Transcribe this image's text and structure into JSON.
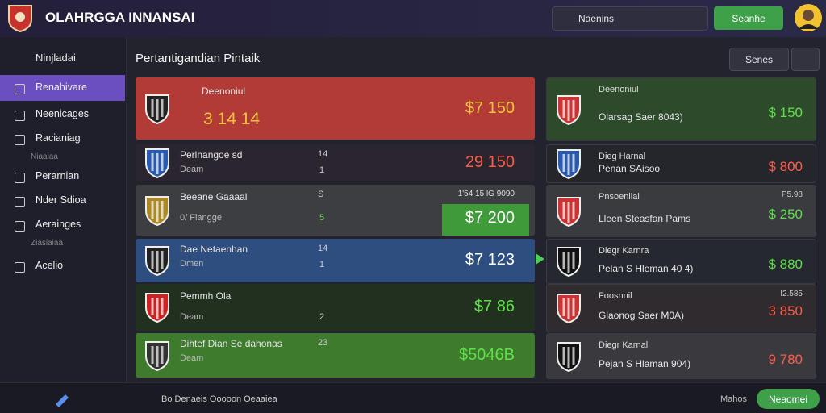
{
  "header": {
    "title": "OLAHRGGA INNANSAI",
    "search": "Naenins",
    "action": "Seanhe"
  },
  "sidebar": {
    "header": "Ninjladai",
    "items": [
      "Renahivare",
      "Neenicages",
      "Racianiag",
      "Niaaiaa",
      "Perarnian",
      "Nder Sdioa",
      "Aerainges",
      "Ziasiaiaa",
      "Acelio"
    ]
  },
  "main": {
    "heading": "Pertantigandian Pintaik",
    "button": "Senes"
  },
  "left_cards": [
    {
      "title": "Deenoniul",
      "score": "3 14 14",
      "amount": "$7 150"
    },
    {
      "title": "Perlnangoe sd",
      "sub": "Deam",
      "a": "14",
      "b": "1",
      "amount": "29 150"
    },
    {
      "title": "Beeane Gaaaal",
      "sub": "0/ Flangge",
      "a": "S",
      "b": "5",
      "note": "1'54 15 lG 9090",
      "amount": "$7 200"
    },
    {
      "title": "Dae Netaenhan",
      "sub": "Dmen",
      "a": "14",
      "b": "1",
      "amount": "$7 123"
    },
    {
      "title": "Pemmh Ola",
      "sub": "Deam",
      "b": "2",
      "amount": "$7 86"
    },
    {
      "title": "Dihtef Dian Se dahonas",
      "sub": "Deam",
      "a": "23",
      "amount": "$5046B"
    }
  ],
  "right_cards": [
    {
      "title": "Deenoniul",
      "sub": "Olarsag Saer 8043)",
      "amount": "$ 150"
    },
    {
      "title": "Dieg Harnal",
      "sub": "Penan SAisoo",
      "amount": "$ 800"
    },
    {
      "title": "Pnsoenlial",
      "sub": "Lleen Steasfan Pams",
      "note": "P5.98",
      "amount": "$ 250"
    },
    {
      "title": "Diegr Karnra",
      "sub": "Pelan S Hleman 40 4)",
      "amount": "$ 880"
    },
    {
      "title": "Foosnnil",
      "sub": "Glaonog Saer M0A)",
      "note": "I2.585",
      "amount": "3 850"
    },
    {
      "title": "Diegr Karnal",
      "sub": "Pejan S Hlaman 904)",
      "amount": "9 780"
    }
  ],
  "footer": {
    "text": "Bo Denaeis Ooooon Oeaaiea",
    "link": "Mahos",
    "button": "Neaomei"
  }
}
